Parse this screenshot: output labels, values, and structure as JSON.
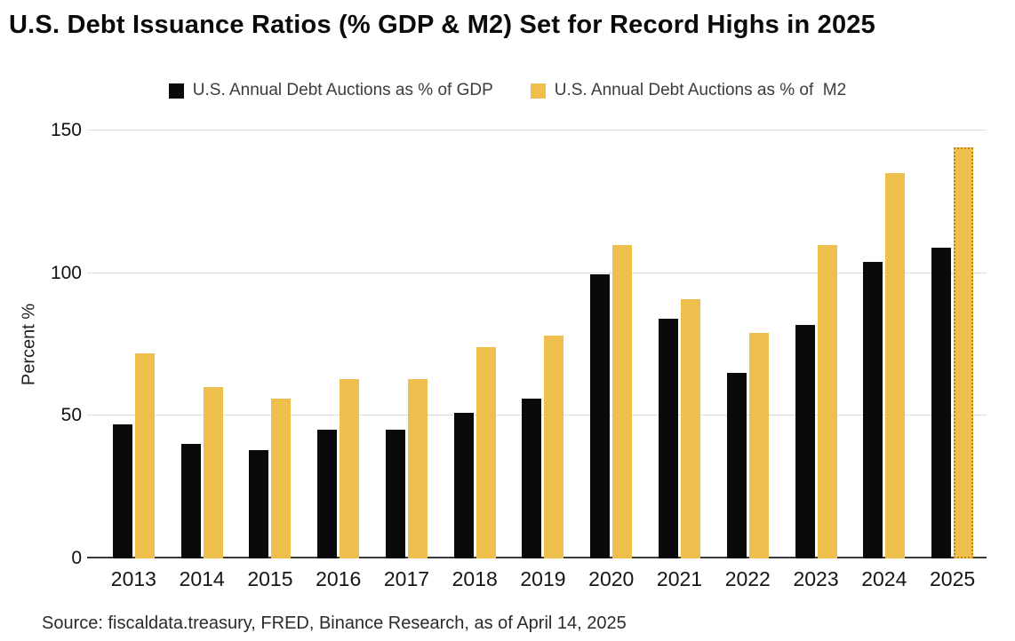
{
  "title": "U.S. Debt Issuance Ratios (% GDP & M2) Set for Record Highs in 2025",
  "source": "Source: fiscaldata.treasury, FRED, Binance Research, as of April 14, 2025",
  "colors": {
    "gdp_bar": "#0a0a0a",
    "m2_bar": "#eebf4d",
    "m2_projection_outline": "#c5830f",
    "gridline": "#dcdcdc",
    "axis_line": "#3a3a3a"
  },
  "chart_data": {
    "type": "bar",
    "title": "U.S. Debt Issuance Ratios (% GDP & M2) Set for Record Highs in 2025",
    "xlabel": "",
    "ylabel": "Percent %",
    "ylim": [
      0,
      150
    ],
    "yticks": [
      0,
      50,
      100,
      150
    ],
    "grid": true,
    "legend_position": "top",
    "categories": [
      "2013",
      "2014",
      "2015",
      "2016",
      "2017",
      "2018",
      "2019",
      "2020",
      "2021",
      "2022",
      "2023",
      "2024",
      "2025"
    ],
    "series": [
      {
        "name": "U.S. Annual Debt Auctions as % of GDP",
        "color": "#0a0a0a",
        "projected_outline": "#0a0a0a",
        "values": [
          47,
          40,
          38,
          45,
          45,
          51,
          56,
          99.5,
          84,
          65,
          82,
          104,
          109
        ]
      },
      {
        "name": "U.S. Annual Debt Auctions as % of  M2",
        "color": "#eebf4d",
        "projected_outline": "#c5830f",
        "values": [
          72,
          60,
          56,
          63,
          63,
          74,
          78,
          110,
          91,
          79,
          110,
          135,
          144
        ]
      }
    ],
    "projected_category": "2025"
  }
}
